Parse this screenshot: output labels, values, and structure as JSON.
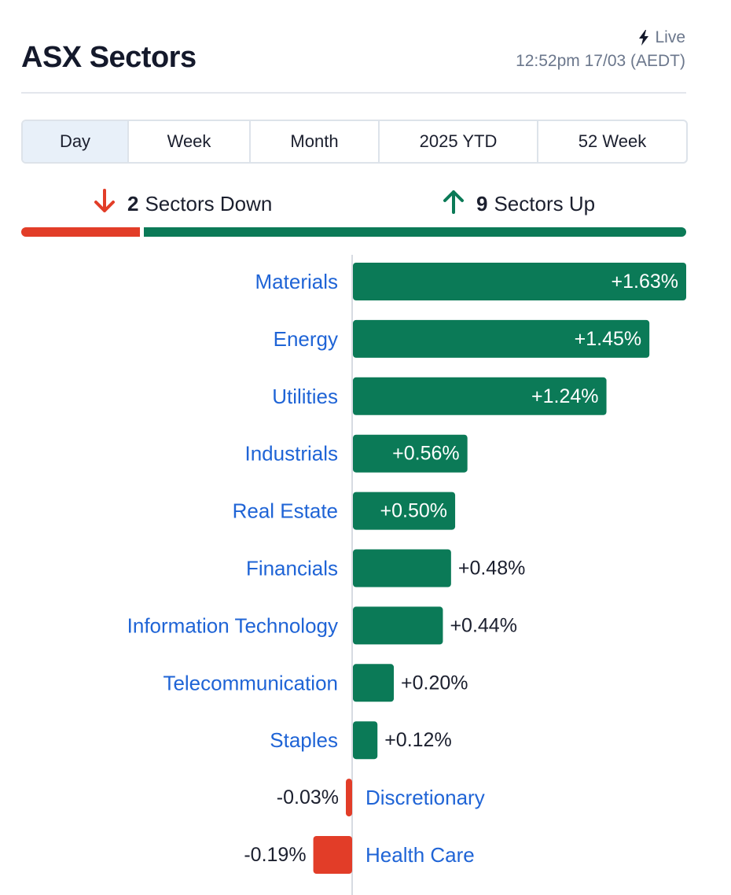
{
  "header": {
    "title": "ASX Sectors",
    "live_label": "Live",
    "timestamp": "12:52pm 17/03 (AEDT)"
  },
  "tabs": [
    {
      "label": "Day",
      "active": true
    },
    {
      "label": "Week",
      "active": false
    },
    {
      "label": "Month",
      "active": false
    },
    {
      "label": "2025 YTD",
      "active": false
    },
    {
      "label": "52 Week",
      "active": false
    }
  ],
  "summary": {
    "down_count": "2",
    "down_label": "Sectors Down",
    "up_count": "9",
    "up_label": "Sectors Up"
  },
  "colors": {
    "up": "#0b7a57",
    "down": "#e23d28",
    "link": "#1f64d6",
    "text": "#1b1f2e",
    "axis": "#d7dbe2"
  },
  "icons": {
    "live": "lightning-bolt-icon",
    "down": "arrow-down-icon",
    "up": "arrow-up-icon"
  },
  "chart_data": {
    "type": "bar",
    "orientation": "horizontal",
    "categories": [
      "Materials",
      "Energy",
      "Utilities",
      "Industrials",
      "Real Estate",
      "Financials",
      "Information Technology",
      "Telecommunication",
      "Staples",
      "Discretionary",
      "Health Care"
    ],
    "values": [
      1.63,
      1.45,
      1.24,
      0.56,
      0.5,
      0.48,
      0.44,
      0.2,
      0.12,
      -0.03,
      -0.19
    ],
    "value_labels": [
      "+1.63%",
      "+1.45%",
      "+1.24%",
      "+0.56%",
      "+0.50%",
      "+0.48%",
      "+0.44%",
      "+0.20%",
      "+0.12%",
      "-0.03%",
      "-0.19%"
    ],
    "grid": false,
    "legend": "none"
  }
}
